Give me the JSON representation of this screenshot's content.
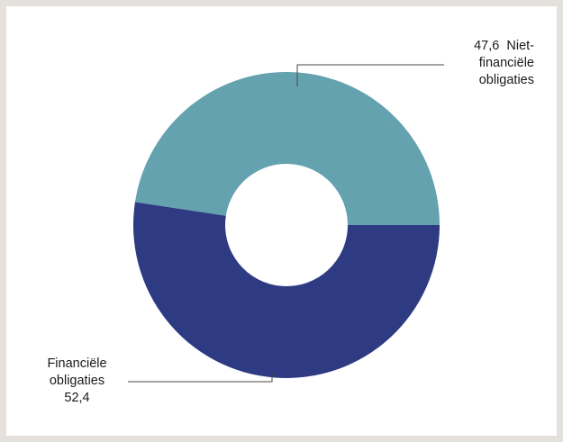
{
  "chart_data": {
    "type": "pie",
    "variant": "donut",
    "slices": [
      {
        "key": "nonfin",
        "value": 47.6,
        "color": "#63a2ae",
        "label_value": "47,6",
        "label_text_1": "Niet-",
        "label_text_2": "financiële",
        "label_text_3": "obligaties"
      },
      {
        "key": "fin",
        "value": 52.4,
        "color": "#2e3a82",
        "label_text_1": "Financiële",
        "label_text_2": "obligaties",
        "label_value": "52,4"
      }
    ],
    "hole_color": "#ffffff",
    "leader_color": "#4a4a4a"
  }
}
